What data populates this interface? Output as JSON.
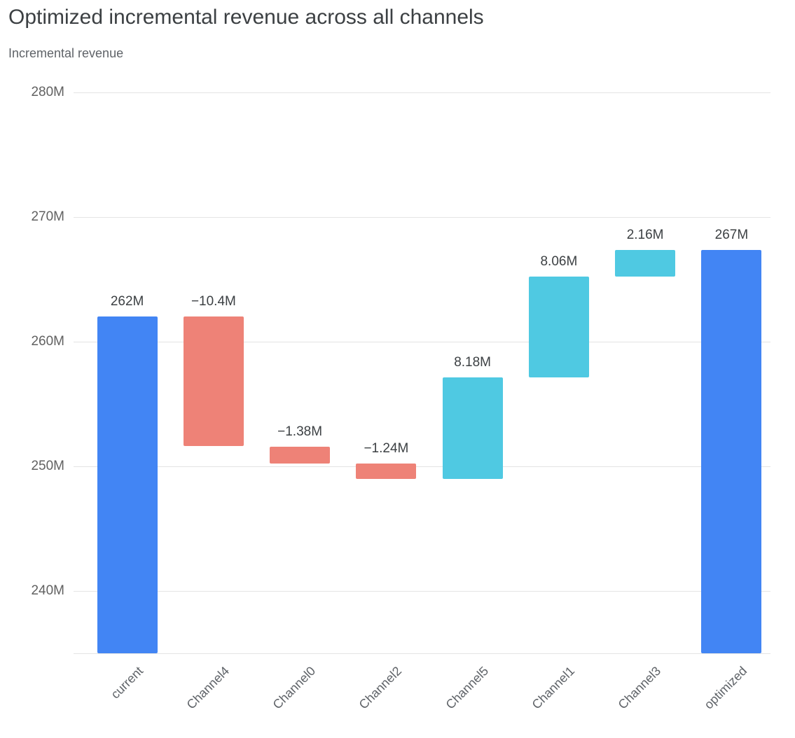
{
  "page": {
    "title": "Optimized incremental revenue across all channels",
    "subtitle": "Incremental revenue"
  },
  "chart_data": {
    "type": "waterfall",
    "title": "Optimized incremental revenue across all channels",
    "ylabel": "Incremental revenue",
    "ylim": [
      235,
      280.5
    ],
    "grid": true,
    "legend": "none",
    "y_ticks": [
      {
        "value": 240,
        "label": "240M"
      },
      {
        "value": 250,
        "label": "250M"
      },
      {
        "value": 260,
        "label": "260M"
      },
      {
        "value": 270,
        "label": "270M"
      },
      {
        "value": 280,
        "label": "280M"
      }
    ],
    "categories": [
      "current",
      "Channel4",
      "Channel0",
      "Channel2",
      "Channel5",
      "Channel1",
      "Channel3",
      "optimized"
    ],
    "bars": [
      {
        "category": "current",
        "role": "total",
        "value": 262,
        "label": "262M"
      },
      {
        "category": "Channel4",
        "role": "delta",
        "value": -10.4,
        "label": "−10.4M"
      },
      {
        "category": "Channel0",
        "role": "delta",
        "value": -1.38,
        "label": "−1.38M"
      },
      {
        "category": "Channel2",
        "role": "delta",
        "value": -1.24,
        "label": "−1.24M"
      },
      {
        "category": "Channel5",
        "role": "delta",
        "value": 8.18,
        "label": "8.18M"
      },
      {
        "category": "Channel1",
        "role": "delta",
        "value": 8.06,
        "label": "8.06M"
      },
      {
        "category": "Channel3",
        "role": "delta",
        "value": 2.16,
        "label": "2.16M"
      },
      {
        "category": "optimized",
        "role": "total",
        "value": 267.38,
        "label": "267M"
      }
    ],
    "colors": {
      "total": "#4285f4",
      "decrease": "#ee8277",
      "increase": "#4fc9e2",
      "gridline": "#e4e4e4",
      "tick_text": "#616161",
      "value_text": "#3c4043",
      "x_text": "#5f6368"
    }
  }
}
